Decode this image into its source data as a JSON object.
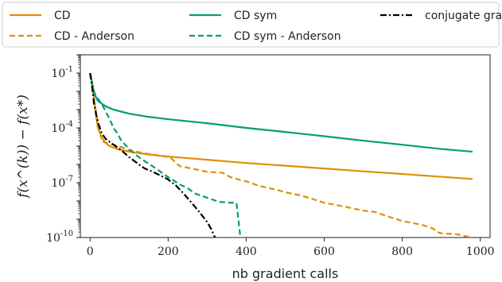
{
  "chart_data": {
    "type": "line",
    "xlabel": "nb gradient calls",
    "ylabel": "f(x^(k)) − f(x*)",
    "y_scale": "log",
    "xlim": [
      -25,
      1025
    ],
    "ylim": [
      1e-10,
      1
    ],
    "x_ticks": [
      0,
      200,
      400,
      600,
      800,
      1000
    ],
    "x_tick_labels": [
      "0",
      "200",
      "400",
      "600",
      "800",
      "1000"
    ],
    "y_ticks": [
      1e-10,
      1e-07,
      0.0001,
      0.1
    ],
    "y_tick_labels": [
      "10^-10",
      "10^-7",
      "10^-4",
      "10^-1"
    ],
    "grid": false,
    "legend_position": "top",
    "colors": {
      "orange": "#DE8F05",
      "green": "#029E73",
      "black": "#000000"
    },
    "series": [
      {
        "name": "CD",
        "color": "#DE8F05",
        "dash": "solid",
        "points": [
          [
            0,
            0.1
          ],
          [
            5,
            0.03
          ],
          [
            10,
            0.005
          ],
          [
            15,
            0.0005
          ],
          [
            20,
            0.0001
          ],
          [
            30,
            3e-05
          ],
          [
            40,
            1.5e-05
          ],
          [
            50,
            1e-05
          ],
          [
            70,
            7e-06
          ],
          [
            100,
            5e-06
          ],
          [
            150,
            3.5e-06
          ],
          [
            200,
            2.7e-06
          ],
          [
            300,
            1.8e-06
          ],
          [
            400,
            1.2e-06
          ],
          [
            500,
            8.5e-07
          ],
          [
            600,
            6e-07
          ],
          [
            700,
            4.2e-07
          ],
          [
            800,
            3e-07
          ],
          [
            900,
            2.1e-07
          ],
          [
            980,
            1.6e-07
          ]
        ]
      },
      {
        "name": "CD - Anderson",
        "color": "#DE8F05",
        "dash": "dashed",
        "points": [
          [
            0,
            0.1
          ],
          [
            5,
            0.02
          ],
          [
            10,
            0.003
          ],
          [
            20,
            0.0002
          ],
          [
            30,
            2e-05
          ],
          [
            40,
            1.5e-05
          ],
          [
            60,
            1.2e-05
          ],
          [
            80,
            9e-06
          ],
          [
            100,
            6e-06
          ],
          [
            120,
            5e-06
          ],
          [
            140,
            4e-06
          ],
          [
            160,
            3.5e-06
          ],
          [
            180,
            3e-06
          ],
          [
            200,
            2.5e-06
          ],
          [
            210,
            2e-06
          ],
          [
            220,
            1.2e-06
          ],
          [
            230,
            8e-07
          ],
          [
            260,
            6e-07
          ],
          [
            300,
            4e-07
          ],
          [
            340,
            3.5e-07
          ],
          [
            360,
            2e-07
          ],
          [
            380,
            1.5e-07
          ],
          [
            400,
            1.2e-07
          ],
          [
            430,
            7e-08
          ],
          [
            460,
            5e-08
          ],
          [
            480,
            4e-08
          ],
          [
            500,
            3e-08
          ],
          [
            540,
            2e-08
          ],
          [
            560,
            1.5e-08
          ],
          [
            600,
            8e-09
          ],
          [
            650,
            5e-09
          ],
          [
            700,
            3e-09
          ],
          [
            730,
            2.5e-09
          ],
          [
            760,
            1.5e-09
          ],
          [
            800,
            8e-10
          ],
          [
            850,
            5e-10
          ],
          [
            880,
            3e-10
          ],
          [
            890,
            2e-10
          ],
          [
            900,
            1.7e-10
          ],
          [
            920,
            1.6e-10
          ],
          [
            940,
            1.5e-10
          ],
          [
            960,
            1.2e-10
          ],
          [
            980,
            1e-10
          ]
        ]
      },
      {
        "name": "CD sym",
        "color": "#029E73",
        "dash": "solid",
        "points": [
          [
            0,
            0.1
          ],
          [
            5,
            0.03
          ],
          [
            10,
            0.008
          ],
          [
            20,
            0.003
          ],
          [
            40,
            0.0015
          ],
          [
            60,
            0.001
          ],
          [
            100,
            0.0006
          ],
          [
            150,
            0.0004
          ],
          [
            200,
            0.0003
          ],
          [
            300,
            0.00018
          ],
          [
            400,
            0.0001
          ],
          [
            500,
            6e-05
          ],
          [
            600,
            3.5e-05
          ],
          [
            700,
            2e-05
          ],
          [
            800,
            1.2e-05
          ],
          [
            900,
            7e-06
          ],
          [
            980,
            5e-06
          ]
        ]
      },
      {
        "name": "CD sym - Anderson",
        "color": "#029E73",
        "dash": "dashed",
        "points": [
          [
            0,
            0.1
          ],
          [
            5,
            0.03
          ],
          [
            10,
            0.01
          ],
          [
            15,
            0.005
          ],
          [
            20,
            0.004
          ],
          [
            30,
            0.002
          ],
          [
            40,
            0.0008
          ],
          [
            50,
            0.0003
          ],
          [
            60,
            0.0001
          ],
          [
            70,
            5e-05
          ],
          [
            80,
            2e-05
          ],
          [
            90,
            1.2e-05
          ],
          [
            100,
            7e-06
          ],
          [
            120,
            3e-06
          ],
          [
            140,
            1.5e-06
          ],
          [
            160,
            8e-07
          ],
          [
            180,
            4e-07
          ],
          [
            200,
            2e-07
          ],
          [
            210,
            1.5e-07
          ],
          [
            230,
            8e-08
          ],
          [
            250,
            5e-08
          ],
          [
            270,
            2.5e-08
          ],
          [
            300,
            1.5e-08
          ],
          [
            330,
            9e-09
          ],
          [
            360,
            8e-09
          ],
          [
            375,
            8e-09
          ],
          [
            380,
            1e-09
          ],
          [
            385,
            1e-10
          ]
        ]
      },
      {
        "name": "conjugate grad.",
        "color": "#000000",
        "dash": "dashdot",
        "points": [
          [
            0,
            0.1
          ],
          [
            5,
            0.02
          ],
          [
            10,
            0.002
          ],
          [
            20,
            0.0002
          ],
          [
            30,
            5e-05
          ],
          [
            40,
            2.5e-05
          ],
          [
            60,
            1.2e-05
          ],
          [
            80,
            6e-06
          ],
          [
            100,
            2.5e-06
          ],
          [
            120,
            1.2e-06
          ],
          [
            140,
            6e-07
          ],
          [
            160,
            4e-07
          ],
          [
            180,
            2.5e-07
          ],
          [
            200,
            1.5e-07
          ],
          [
            220,
            7e-08
          ],
          [
            240,
            2.5e-08
          ],
          [
            260,
            8e-09
          ],
          [
            280,
            2.5e-09
          ],
          [
            300,
            7e-10
          ],
          [
            310,
            3e-10
          ],
          [
            320,
            1e-10
          ]
        ]
      }
    ]
  }
}
